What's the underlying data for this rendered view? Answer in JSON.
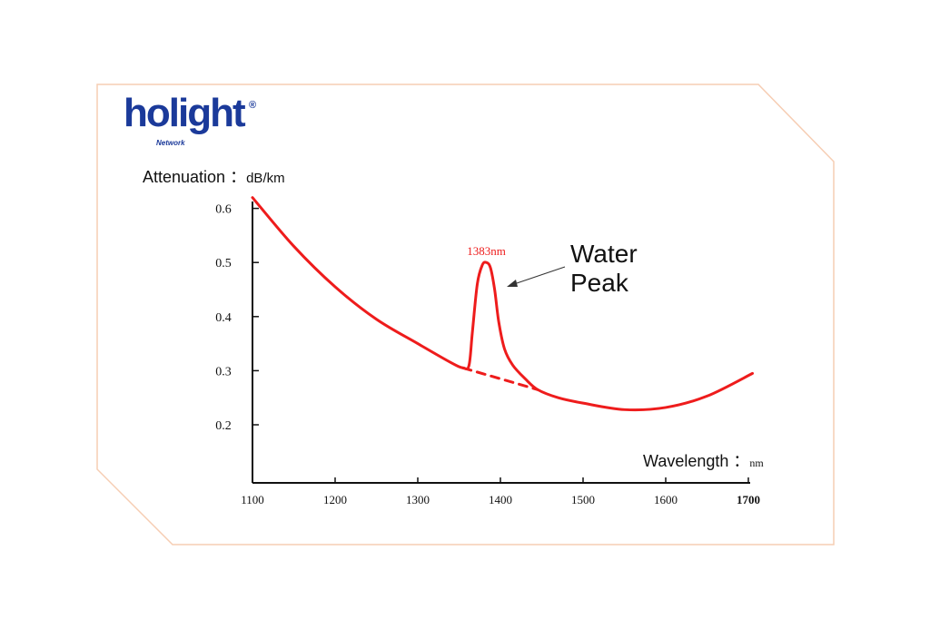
{
  "brand": {
    "name": "holight",
    "registered": "®",
    "sub": "Network"
  },
  "colors": {
    "curve": "#ee1c1c",
    "axis": "#111111",
    "frame": "#f6cdb3",
    "brand": "#1b3a9a"
  },
  "chart_data": {
    "type": "line",
    "title": "",
    "ylabel": "Attenuation",
    "ylabel_unit": "dB/km",
    "xlabel": "Wavelength",
    "xlabel_unit": "nm",
    "xlim": [
      1100,
      1700
    ],
    "ylim": [
      0.1,
      0.63
    ],
    "x_ticks": [
      "1100",
      "1200",
      "1300",
      "1400",
      "1500",
      "1600",
      "1700"
    ],
    "y_ticks": [
      "0.6",
      "0.5",
      "0.4",
      "0.3",
      "0.2"
    ],
    "grid": false,
    "series": [
      {
        "style": "solid",
        "x": [
          1100,
          1150,
          1200,
          1250,
          1300,
          1340,
          1355,
          1362,
          1366,
          1372,
          1378,
          1383,
          1388,
          1393,
          1398,
          1405,
          1415,
          1430,
          1445,
          1470,
          1500,
          1550,
          1600,
          1650,
          1705
        ],
        "y": [
          0.62,
          0.53,
          0.455,
          0.395,
          0.35,
          0.315,
          0.305,
          0.31,
          0.37,
          0.46,
          0.495,
          0.5,
          0.49,
          0.45,
          0.39,
          0.34,
          0.31,
          0.285,
          0.265,
          0.25,
          0.24,
          0.228,
          0.232,
          0.253,
          0.295
        ]
      },
      {
        "style": "dashed",
        "x": [
          1355,
          1445
        ],
        "y": [
          0.305,
          0.265
        ]
      }
    ],
    "annotations": [
      {
        "text": "1383nm",
        "x": 1383,
        "y": 0.5
      },
      {
        "text": "Water Peak",
        "line1": "Water",
        "line2": "Peak",
        "points_to": [
          1390,
          0.46
        ]
      }
    ]
  }
}
